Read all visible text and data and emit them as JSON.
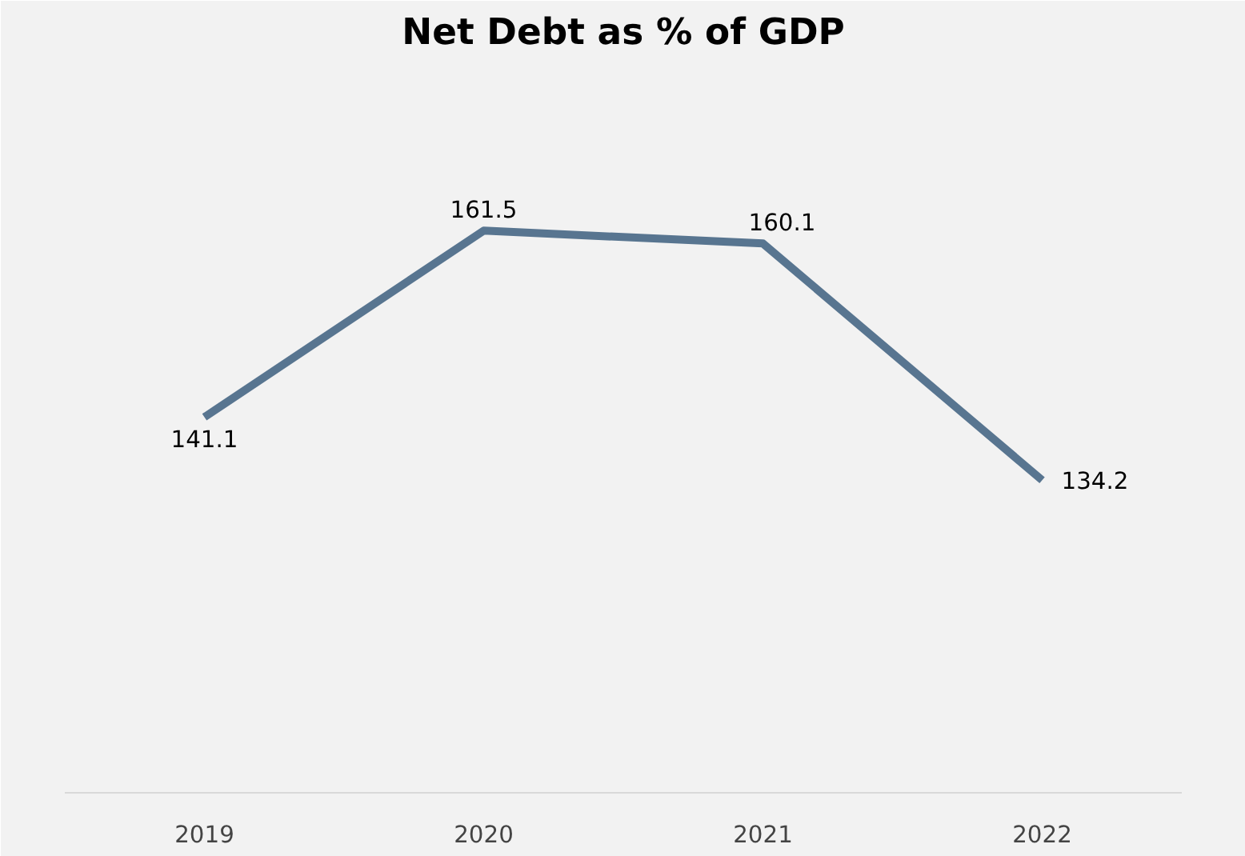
{
  "chart_data": {
    "type": "line",
    "title": "Net Debt as % of GDP",
    "categories": [
      "2019",
      "2020",
      "2021",
      "2022"
    ],
    "series": [
      {
        "color": "#587590",
        "values": [
          141.1,
          161.5,
          160.1,
          134.2
        ]
      }
    ],
    "ylim": [
      100,
      180
    ],
    "tick_labels": "x",
    "grid": false,
    "marker": "none",
    "data_labels": true
  }
}
